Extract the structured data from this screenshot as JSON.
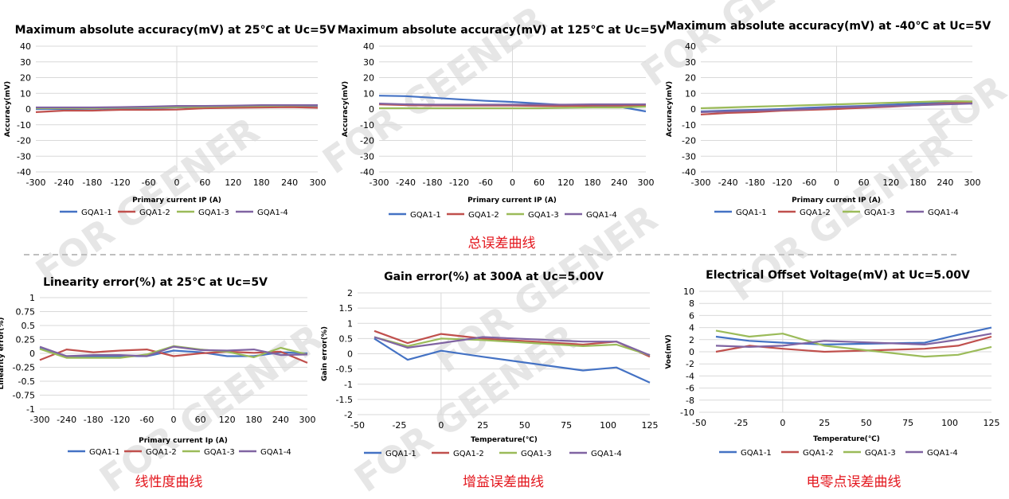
{
  "captions": {
    "total": "总误差曲线",
    "linearity": "线性度曲线",
    "gain": "增益误差曲线",
    "offset": "电零点误差曲线"
  },
  "watermark": "FOR GEENER",
  "colors": {
    "GQA1-1": "#4472c4",
    "GQA1-2": "#c0504d",
    "GQA1-3": "#9bbb59",
    "GQA1-4": "#8064a2",
    "grid": "#d9d9d9",
    "caption": "#e3141b",
    "divider": "#bfbfbf"
  },
  "chart_data": [
    {
      "type": "line",
      "title": "Maximum absolute accuracy(mV) at 25℃ at Uc=5V",
      "xlabel": "Primary current IP (A)",
      "ylabel": "Accuracy(mV)",
      "x": [
        -300,
        -240,
        -180,
        -120,
        -60,
        0,
        60,
        120,
        180,
        240,
        300
      ],
      "xticks": [
        "-300",
        "-240",
        "-180",
        "-120",
        "-60",
        "0",
        "60",
        "120",
        "180",
        "240",
        "300"
      ],
      "xlim": [
        -300,
        300
      ],
      "ylim": [
        -40,
        40
      ],
      "yticks": [
        "40",
        "30",
        "20",
        "10",
        "0",
        "-10",
        "-20",
        "-30",
        "-40"
      ],
      "series": [
        {
          "name": "GQA1-1",
          "values": [
            0,
            0,
            0.2,
            0.4,
            0.6,
            1.0,
            1.2,
            1.5,
            1.8,
            2.0,
            2.0
          ]
        },
        {
          "name": "GQA1-2",
          "values": [
            -2,
            -1,
            -1,
            -0.5,
            -0.5,
            -0.3,
            0.5,
            0.8,
            1.0,
            1.2,
            0.8
          ]
        },
        {
          "name": "GQA1-3",
          "values": [
            0.5,
            0.5,
            0.5,
            0.8,
            1.0,
            1.2,
            1.4,
            1.8,
            2.0,
            2.2,
            2.3
          ]
        },
        {
          "name": "GQA1-4",
          "values": [
            1,
            1,
            1,
            1.2,
            1.5,
            2,
            2,
            2.2,
            2.5,
            2.5,
            2.5
          ]
        }
      ]
    },
    {
      "type": "line",
      "title": "Maximum absolute accuracy(mV) at 125℃ at Uc=5V",
      "xlabel": "Primary current IP (A)",
      "ylabel": "Accuracy(mV)",
      "x": [
        -300,
        -240,
        -180,
        -120,
        -60,
        0,
        60,
        120,
        180,
        240,
        300
      ],
      "xticks": [
        "-300",
        "-240",
        "-180",
        "-120",
        "-60",
        "0",
        "60",
        "120",
        "180",
        "240",
        "300"
      ],
      "xlim": [
        -300,
        300
      ],
      "ylim": [
        -40,
        40
      ],
      "yticks": [
        "40",
        "30",
        "20",
        "10",
        "0",
        "-10",
        "-20",
        "-30",
        "-40"
      ],
      "series": [
        {
          "name": "GQA1-1",
          "values": [
            8.5,
            8.2,
            7.2,
            6.2,
            5.2,
            4.5,
            3.5,
            2.5,
            2.0,
            1.5,
            -1.5
          ]
        },
        {
          "name": "GQA1-2",
          "values": [
            3,
            2.5,
            2.3,
            2.2,
            2.2,
            2.2,
            2.0,
            2.0,
            2.2,
            2.3,
            2.0
          ]
        },
        {
          "name": "GQA1-3",
          "values": [
            0.5,
            0.5,
            0.5,
            0.5,
            0.5,
            0.5,
            0.5,
            0.8,
            1.0,
            1.0,
            1.5
          ]
        },
        {
          "name": "GQA1-4",
          "values": [
            3.5,
            3.0,
            2.8,
            2.8,
            2.8,
            2.8,
            2.8,
            2.8,
            3.0,
            3.0,
            3.0
          ]
        }
      ]
    },
    {
      "type": "line",
      "title": "Maximum absolute accuracy(mV) at -40℃ at Uc=5V",
      "xlabel": "Primary current IP (A)",
      "ylabel": "Accuracy(mV)",
      "x": [
        -300,
        -240,
        -180,
        -120,
        -60,
        0,
        60,
        120,
        180,
        240,
        300
      ],
      "xticks": [
        "-300",
        "-240",
        "-180",
        "-120",
        "-60",
        "0",
        "60",
        "120",
        "180",
        "240",
        "300"
      ],
      "xlim": [
        -300,
        300
      ],
      "ylim": [
        -40,
        40
      ],
      "yticks": [
        "40",
        "30",
        "20",
        "10",
        "0",
        "-10",
        "-20",
        "-30",
        "-40"
      ],
      "series": [
        {
          "name": "GQA1-1",
          "values": [
            -1.5,
            -1.0,
            -0.5,
            0,
            0.8,
            1.5,
            2.0,
            2.8,
            3.5,
            4.0,
            4.2
          ]
        },
        {
          "name": "GQA1-2",
          "values": [
            -3.5,
            -2.5,
            -2.0,
            -1.0,
            -0.5,
            0,
            0.8,
            1.5,
            2.5,
            3.5,
            4.0
          ]
        },
        {
          "name": "GQA1-3",
          "values": [
            0.5,
            1.0,
            1.5,
            2.0,
            2.5,
            3.0,
            3.5,
            4.0,
            4.5,
            5.0,
            4.8
          ]
        },
        {
          "name": "GQA1-4",
          "values": [
            -2.0,
            -1.5,
            -1.0,
            -0.5,
            0,
            1.0,
            1.5,
            2.0,
            2.5,
            3.0,
            3.5
          ]
        }
      ]
    },
    {
      "type": "line",
      "title": "Linearity error(%) at 25℃ at Uc=5V",
      "xlabel": "Primary current Ip (A)",
      "ylabel": "Linearity error(%)",
      "x": [
        -300,
        -240,
        -180,
        -120,
        -60,
        0,
        60,
        120,
        180,
        240,
        300
      ],
      "xticks": [
        "-300",
        "-240",
        "-180",
        "-120",
        "-60",
        "0",
        "60",
        "120",
        "180",
        "240",
        "300"
      ],
      "xlim": [
        -300,
        300
      ],
      "ylim": [
        -1,
        1
      ],
      "yticks": [
        "1",
        "0.75",
        "0.5",
        "0.25",
        "0",
        "-0.25",
        "-0.5",
        "-0.75",
        "-1"
      ],
      "series": [
        {
          "name": "GQA1-1",
          "values": [
            0.1,
            -0.05,
            -0.05,
            -0.05,
            -0.05,
            0.05,
            0.02,
            -0.05,
            -0.05,
            0.02,
            0
          ]
        },
        {
          "name": "GQA1-2",
          "values": [
            -0.12,
            0.07,
            0.02,
            0.05,
            0.07,
            -0.05,
            0,
            0.03,
            0.01,
            0.03,
            -0.17
          ]
        },
        {
          "name": "GQA1-3",
          "values": [
            0.08,
            -0.08,
            -0.08,
            -0.08,
            -0.02,
            0.13,
            0.07,
            0.03,
            -0.07,
            0.1,
            -0.02
          ]
        },
        {
          "name": "GQA1-4",
          "values": [
            0.12,
            -0.05,
            -0.03,
            -0.03,
            -0.05,
            0.12,
            0.06,
            0.05,
            0.07,
            -0.03,
            -0.02
          ]
        }
      ]
    },
    {
      "type": "line",
      "title": "Gain error(%) at 300A at Uc=5.00V",
      "xlabel": "Temperature(℃)",
      "ylabel": "Gain error(%)",
      "x": [
        -40,
        -20,
        0,
        25,
        85,
        105,
        125
      ],
      "xticks": [
        "-50",
        "-25",
        "0",
        "25",
        "50",
        "75",
        "100",
        "125"
      ],
      "xlim": [
        -50,
        125
      ],
      "ylim": [
        -2,
        2
      ],
      "yticks": [
        "2",
        "1.5",
        "1",
        "0.5",
        "0",
        "-0.5",
        "-1",
        "-1.5",
        "-2"
      ],
      "series": [
        {
          "name": "GQA1-1",
          "values": [
            0.5,
            -0.2,
            0.1,
            -0.1,
            -0.55,
            -0.45,
            -0.95
          ]
        },
        {
          "name": "GQA1-2",
          "values": [
            0.75,
            0.35,
            0.65,
            0.5,
            0.3,
            0.4,
            -0.1
          ]
        },
        {
          "name": "GQA1-3",
          "values": [
            0.55,
            0.25,
            0.5,
            0.45,
            0.25,
            0.3,
            -0.05
          ]
        },
        {
          "name": "GQA1-4",
          "values": [
            0.55,
            0.2,
            0.35,
            0.55,
            0.4,
            0.4,
            -0.05
          ]
        }
      ]
    },
    {
      "type": "line",
      "title": "Electrical Offset Voltage(mV) at Uc=5.00V",
      "xlabel": "Temperature(℃)",
      "ylabel": "Voe(mV)",
      "x": [
        -40,
        -20,
        0,
        25,
        85,
        105,
        125
      ],
      "xticks": [
        "-50",
        "-25",
        "0",
        "25",
        "50",
        "75",
        "100",
        "125"
      ],
      "xlim": [
        -50,
        125
      ],
      "ylim": [
        -10,
        10
      ],
      "yticks": [
        "10",
        "8",
        "6",
        "4",
        "2",
        "0",
        "-2",
        "-4",
        "-6",
        "-8",
        "-10"
      ],
      "series": [
        {
          "name": "GQA1-1",
          "values": [
            2.5,
            1.8,
            1.5,
            1.2,
            1.5,
            2.8,
            4.0
          ]
        },
        {
          "name": "GQA1-2",
          "values": [
            0,
            1.0,
            0.5,
            0,
            0.5,
            1.0,
            2.5
          ]
        },
        {
          "name": "GQA1-3",
          "values": [
            3.5,
            2.5,
            3.0,
            1.0,
            -0.8,
            -0.5,
            0.8
          ]
        },
        {
          "name": "GQA1-4",
          "values": [
            1.0,
            0.8,
            1.0,
            1.8,
            1.2,
            2.0,
            3.0
          ]
        }
      ]
    }
  ]
}
